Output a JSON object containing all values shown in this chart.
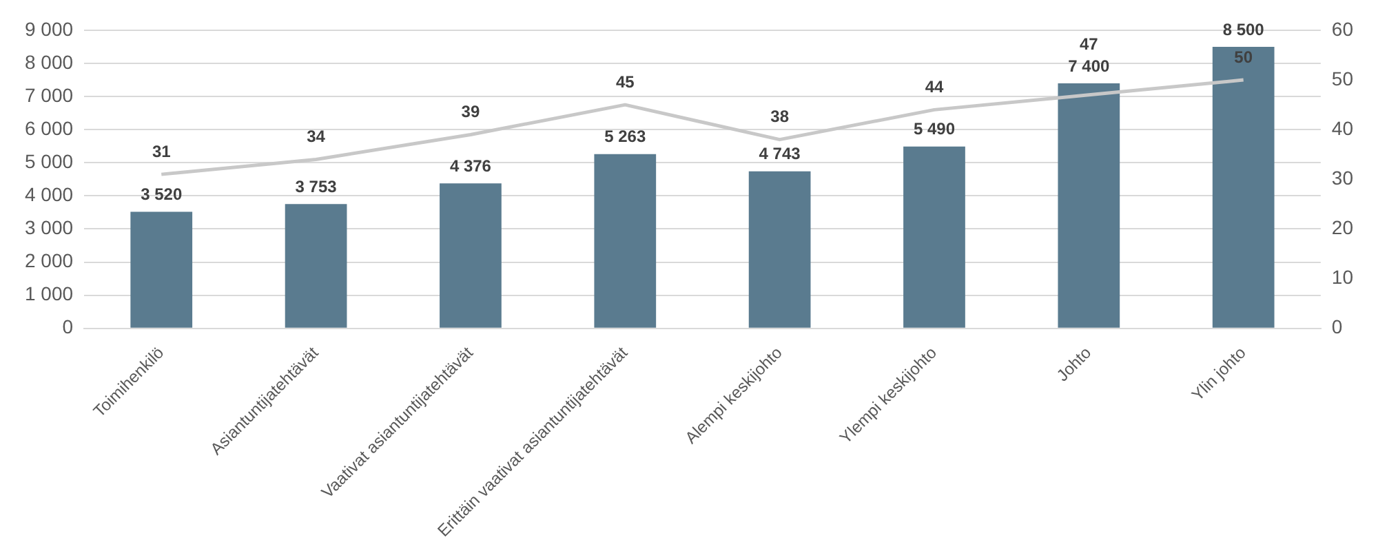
{
  "chart_data": {
    "type": "bar",
    "categories": [
      "Toimihenkilö",
      "Asiantuntijatehtävät",
      "Vaativat asiantuntijatehtävät",
      "Erittäin vaativat asiantuntijatehtävät",
      "Alempi keskijohto",
      "Ylempi keskijohto",
      "Johto",
      "Ylin johto"
    ],
    "series": [
      {
        "color": "#5a7b8f",
        "values": [
          3520,
          3753,
          4376,
          5263,
          4743,
          5490,
          7400,
          8500
        ]
      },
      {
        "type": "line",
        "axis": "y2",
        "color": "#c8c8c8",
        "marker": "none",
        "values": [
          31,
          34,
          39,
          45,
          38,
          44,
          47,
          50
        ]
      }
    ],
    "ylim": [
      0,
      9000
    ],
    "yticks": [
      0,
      1000,
      2000,
      3000,
      4000,
      5000,
      6000,
      7000,
      8000,
      9000
    ],
    "y2lim": [
      0,
      60
    ],
    "y2ticks": [
      0,
      10,
      20,
      30,
      40,
      50,
      60
    ],
    "grid": "y",
    "legend": false,
    "data_labels": true
  }
}
